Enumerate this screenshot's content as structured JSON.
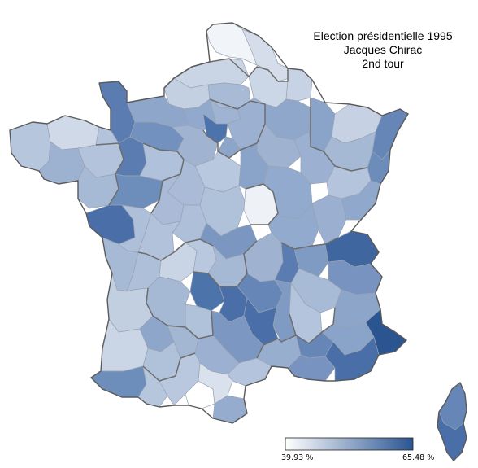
{
  "title": {
    "line1": "Election présidentielle 1995",
    "line2": "Jacques Chirac",
    "line3": "2nd tour"
  },
  "legend": {
    "min_label": "39.93 %",
    "max_label": "65.48 %",
    "min_value": 39.93,
    "max_value": 65.48,
    "color_low": "#ffffff",
    "color_high": "#2b5591"
  },
  "colors": {
    "border": "#6d6d6d",
    "dept_stroke": "#9aa3b3"
  }
}
